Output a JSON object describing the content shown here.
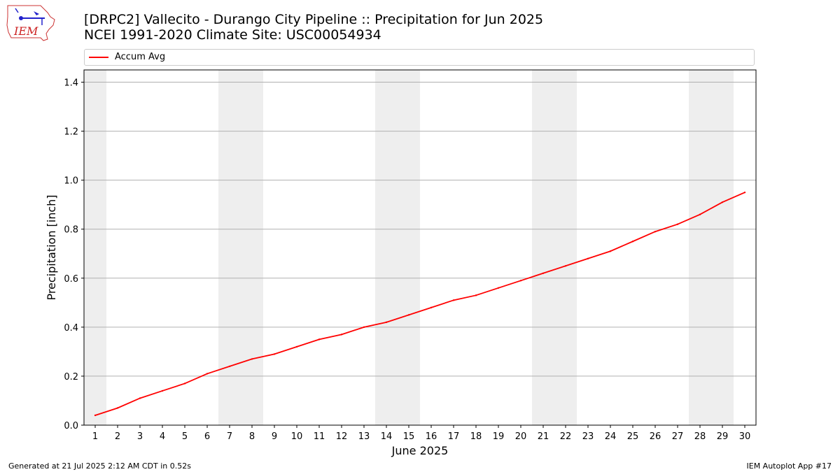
{
  "header": {
    "title_line1": "[DRPC2] Vallecito - Durango City Pipeline :: Precipitation for Jun 2025",
    "title_line2": "NCEI 1991-2020 Climate Site: USC00054934",
    "logo_text": "IEM"
  },
  "footer": {
    "left": "Generated at 21 Jul 2025 2:12 AM CDT in 0.52s",
    "right": "IEM Autoplot App #17"
  },
  "colors": {
    "series": "#ff0000",
    "weekend_band": "#eeeeee",
    "grid": "#b0b0b0"
  },
  "chart_data": {
    "type": "line",
    "title": "[DRPC2] Vallecito - Durango City Pipeline :: Precipitation for Jun 2025",
    "subtitle": "NCEI 1991-2020 Climate Site: USC00054934",
    "xlabel": "June 2025",
    "ylabel": "Precipitation [inch]",
    "x": [
      1,
      2,
      3,
      4,
      5,
      6,
      7,
      8,
      9,
      10,
      11,
      12,
      13,
      14,
      15,
      16,
      17,
      18,
      19,
      20,
      21,
      22,
      23,
      24,
      25,
      26,
      27,
      28,
      29,
      30
    ],
    "xlim": [
      0.5,
      30.5
    ],
    "ylim": [
      0,
      1.45
    ],
    "yticks": [
      0.0,
      0.2,
      0.4,
      0.6,
      0.8,
      1.0,
      1.2,
      1.4
    ],
    "ytick_labels": [
      "0.0",
      "0.2",
      "0.4",
      "0.6",
      "0.8",
      "1.0",
      "1.2",
      "1.4"
    ],
    "grid": "horizontal",
    "legend_position": "top",
    "weekend_bands": [
      [
        0.5,
        1.5
      ],
      [
        6.5,
        8.5
      ],
      [
        13.5,
        15.5
      ],
      [
        20.5,
        22.5
      ],
      [
        27.5,
        29.5
      ]
    ],
    "series": [
      {
        "name": "Accum Avg",
        "color": "#ff0000",
        "values": [
          0.04,
          0.07,
          0.11,
          0.14,
          0.17,
          0.21,
          0.24,
          0.27,
          0.29,
          0.32,
          0.35,
          0.37,
          0.4,
          0.42,
          0.45,
          0.48,
          0.51,
          0.53,
          0.56,
          0.59,
          0.62,
          0.65,
          0.68,
          0.71,
          0.75,
          0.79,
          0.82,
          0.86,
          0.91,
          0.95
        ]
      }
    ]
  }
}
